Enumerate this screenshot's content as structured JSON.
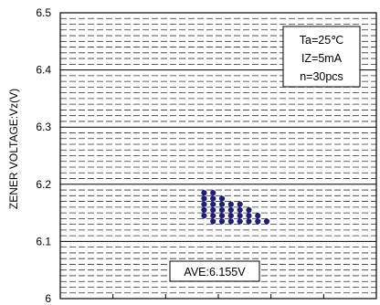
{
  "chart_data": {
    "type": "scatter",
    "title": "",
    "xlabel": "",
    "ylabel": "ZENER VOLTAGE:Vz(V)",
    "ylim": [
      6.0,
      6.5
    ],
    "yticks": [
      "6",
      "6.1",
      "6.2",
      "6.3",
      "6.4",
      "6.5"
    ],
    "xlim": [
      0,
      6
    ],
    "xticks_labeled": false,
    "grid": "dashed minor rows, solid major lines",
    "conditions": [
      "Ta=25℃",
      "IZ=5mA",
      "n=30pcs"
    ],
    "conditions_position": "top-right",
    "average_label": "AVE:6.155V",
    "average_position": "bottom-center",
    "marker_color": "#1f1f7a",
    "series": [
      {
        "points": [
          {
            "x": 2.73,
            "y": 6.185
          },
          {
            "x": 2.73,
            "y": 6.175
          },
          {
            "x": 2.73,
            "y": 6.165
          },
          {
            "x": 2.73,
            "y": 6.155
          },
          {
            "x": 2.73,
            "y": 6.145
          },
          {
            "x": 2.9,
            "y": 6.185
          },
          {
            "x": 2.9,
            "y": 6.175
          },
          {
            "x": 2.9,
            "y": 6.165
          },
          {
            "x": 2.9,
            "y": 6.155
          },
          {
            "x": 2.9,
            "y": 6.145
          },
          {
            "x": 2.9,
            "y": 6.135
          },
          {
            "x": 3.07,
            "y": 6.175
          },
          {
            "x": 3.07,
            "y": 6.165
          },
          {
            "x": 3.07,
            "y": 6.155
          },
          {
            "x": 3.07,
            "y": 6.145
          },
          {
            "x": 3.07,
            "y": 6.135
          },
          {
            "x": 3.24,
            "y": 6.165
          },
          {
            "x": 3.24,
            "y": 6.155
          },
          {
            "x": 3.24,
            "y": 6.145
          },
          {
            "x": 3.24,
            "y": 6.135
          },
          {
            "x": 3.41,
            "y": 6.165
          },
          {
            "x": 3.41,
            "y": 6.155
          },
          {
            "x": 3.41,
            "y": 6.145
          },
          {
            "x": 3.41,
            "y": 6.135
          },
          {
            "x": 3.58,
            "y": 6.155
          },
          {
            "x": 3.58,
            "y": 6.145
          },
          {
            "x": 3.58,
            "y": 6.135
          },
          {
            "x": 3.75,
            "y": 6.145
          },
          {
            "x": 3.75,
            "y": 6.135
          },
          {
            "x": 3.92,
            "y": 6.135
          }
        ]
      }
    ]
  }
}
